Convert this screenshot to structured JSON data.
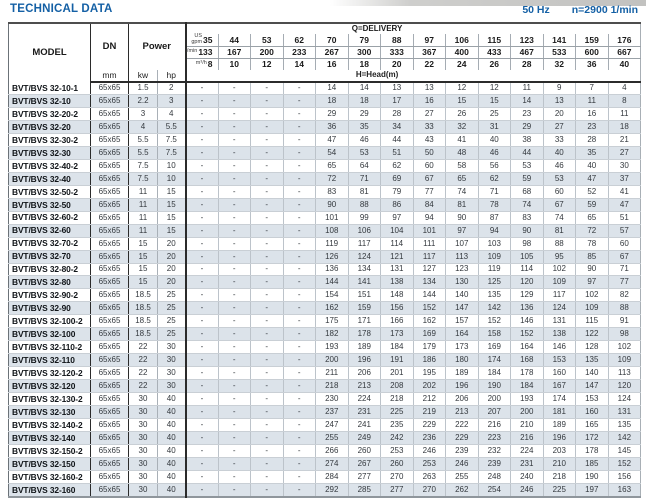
{
  "page": {
    "title": "TECHNICAL DATA",
    "frequency": "50 Hz",
    "speed": "n=2900 1/min"
  },
  "colors": {
    "accent_blue": "#1460a5",
    "row_shade": "#dce3ea"
  },
  "table": {
    "headers": {
      "model": "MODEL",
      "dn": "DN",
      "dn_unit": "mm",
      "power": "Power",
      "power_units": [
        "kw",
        "hp"
      ],
      "delivery": "Q=DELIVERY",
      "head": "H=Head(m)",
      "unit_rows": [
        {
          "label_lines": [
            "US",
            "gpm"
          ],
          "values": [
            "35",
            "44",
            "53",
            "62",
            "70",
            "79",
            "88",
            "97",
            "106",
            "115",
            "123",
            "141",
            "159",
            "176"
          ]
        },
        {
          "label_lines": [
            "l/min"
          ],
          "values": [
            "133",
            "167",
            "200",
            "233",
            "267",
            "300",
            "333",
            "367",
            "400",
            "433",
            "467",
            "533",
            "600",
            "667"
          ]
        },
        {
          "label_lines": [
            "m³/h"
          ],
          "values": [
            "8",
            "10",
            "12",
            "14",
            "16",
            "18",
            "20",
            "22",
            "24",
            "26",
            "28",
            "32",
            "36",
            "40"
          ]
        }
      ]
    },
    "rows": [
      {
        "model": "BVT/BVS 32-10-1",
        "dn": "65x65",
        "kw": "1.5",
        "hp": "2",
        "head": [
          "-",
          "-",
          "-",
          "-",
          "14",
          "14",
          "13",
          "13",
          "12",
          "12",
          "11",
          "9",
          "7",
          "4"
        ]
      },
      {
        "model": "BVT/BVS 32-10",
        "dn": "65x65",
        "kw": "2.2",
        "hp": "3",
        "head": [
          "-",
          "-",
          "-",
          "-",
          "18",
          "18",
          "17",
          "16",
          "15",
          "15",
          "14",
          "13",
          "11",
          "8"
        ]
      },
      {
        "model": "BVT/BVS 32-20-2",
        "dn": "65x65",
        "kw": "3",
        "hp": "4",
        "head": [
          "-",
          "-",
          "-",
          "-",
          "29",
          "29",
          "28",
          "27",
          "26",
          "25",
          "23",
          "20",
          "16",
          "11"
        ]
      },
      {
        "model": "BVT/BVS 32-20",
        "dn": "65x65",
        "kw": "4",
        "hp": "5.5",
        "head": [
          "-",
          "-",
          "-",
          "-",
          "36",
          "35",
          "34",
          "33",
          "32",
          "31",
          "29",
          "27",
          "23",
          "18"
        ]
      },
      {
        "model": "BVT/BVS 32-30-2",
        "dn": "65x65",
        "kw": "5.5",
        "hp": "7.5",
        "head": [
          "-",
          "-",
          "-",
          "-",
          "47",
          "46",
          "44",
          "43",
          "41",
          "40",
          "38",
          "33",
          "28",
          "21"
        ]
      },
      {
        "model": "BVT/BVS 32-30",
        "dn": "65x65",
        "kw": "5.5",
        "hp": "7.5",
        "head": [
          "-",
          "-",
          "-",
          "-",
          "54",
          "53",
          "51",
          "50",
          "48",
          "46",
          "44",
          "40",
          "35",
          "27"
        ]
      },
      {
        "model": "BVT/BVS 32-40-2",
        "dn": "65x65",
        "kw": "7.5",
        "hp": "10",
        "head": [
          "-",
          "-",
          "-",
          "-",
          "65",
          "64",
          "62",
          "60",
          "58",
          "56",
          "53",
          "46",
          "40",
          "30"
        ]
      },
      {
        "model": "BVT/BVS 32-40",
        "dn": "65x65",
        "kw": "7.5",
        "hp": "10",
        "head": [
          "-",
          "-",
          "-",
          "-",
          "72",
          "71",
          "69",
          "67",
          "65",
          "62",
          "59",
          "53",
          "47",
          "37"
        ]
      },
      {
        "model": "BVT/BVS 32-50-2",
        "dn": "65x65",
        "kw": "11",
        "hp": "15",
        "head": [
          "-",
          "-",
          "-",
          "-",
          "83",
          "81",
          "79",
          "77",
          "74",
          "71",
          "68",
          "60",
          "52",
          "41"
        ]
      },
      {
        "model": "BVT/BVS 32-50",
        "dn": "65x65",
        "kw": "11",
        "hp": "15",
        "head": [
          "-",
          "-",
          "-",
          "-",
          "90",
          "88",
          "86",
          "84",
          "81",
          "78",
          "74",
          "67",
          "59",
          "47"
        ]
      },
      {
        "model": "BVT/BVS 32-60-2",
        "dn": "65x65",
        "kw": "11",
        "hp": "15",
        "head": [
          "-",
          "-",
          "-",
          "-",
          "101",
          "99",
          "97",
          "94",
          "90",
          "87",
          "83",
          "74",
          "65",
          "51"
        ]
      },
      {
        "model": "BVT/BVS 32-60",
        "dn": "65x65",
        "kw": "11",
        "hp": "15",
        "head": [
          "-",
          "-",
          "-",
          "-",
          "108",
          "106",
          "104",
          "101",
          "97",
          "94",
          "90",
          "81",
          "72",
          "57"
        ]
      },
      {
        "model": "BVT/BVS 32-70-2",
        "dn": "65x65",
        "kw": "15",
        "hp": "20",
        "head": [
          "-",
          "-",
          "-",
          "-",
          "119",
          "117",
          "114",
          "111",
          "107",
          "103",
          "98",
          "88",
          "78",
          "60"
        ]
      },
      {
        "model": "BVT/BVS 32-70",
        "dn": "65x65",
        "kw": "15",
        "hp": "20",
        "head": [
          "-",
          "-",
          "-",
          "-",
          "126",
          "124",
          "121",
          "117",
          "113",
          "109",
          "105",
          "95",
          "85",
          "67"
        ]
      },
      {
        "model": "BVT/BVS 32-80-2",
        "dn": "65x65",
        "kw": "15",
        "hp": "20",
        "head": [
          "-",
          "-",
          "-",
          "-",
          "136",
          "134",
          "131",
          "127",
          "123",
          "119",
          "114",
          "102",
          "90",
          "71"
        ]
      },
      {
        "model": "BVT/BVS 32-80",
        "dn": "65x65",
        "kw": "15",
        "hp": "20",
        "head": [
          "-",
          "-",
          "-",
          "-",
          "144",
          "141",
          "138",
          "134",
          "130",
          "125",
          "120",
          "109",
          "97",
          "77"
        ]
      },
      {
        "model": "BVT/BVS 32-90-2",
        "dn": "65x65",
        "kw": "18.5",
        "hp": "25",
        "head": [
          "-",
          "-",
          "-",
          "-",
          "154",
          "151",
          "148",
          "144",
          "140",
          "135",
          "129",
          "117",
          "102",
          "82"
        ]
      },
      {
        "model": "BVT/BVS 32-90",
        "dn": "65x65",
        "kw": "18.5",
        "hp": "25",
        "head": [
          "-",
          "-",
          "-",
          "-",
          "162",
          "159",
          "156",
          "152",
          "147",
          "142",
          "136",
          "124",
          "109",
          "88"
        ]
      },
      {
        "model": "BVT/BVS 32-100-2",
        "dn": "65x65",
        "kw": "18.5",
        "hp": "25",
        "head": [
          "-",
          "-",
          "-",
          "-",
          "175",
          "171",
          "166",
          "162",
          "157",
          "152",
          "146",
          "131",
          "115",
          "91"
        ]
      },
      {
        "model": "BVT/BVS 32-100",
        "dn": "65x65",
        "kw": "18.5",
        "hp": "25",
        "head": [
          "-",
          "-",
          "-",
          "-",
          "182",
          "178",
          "173",
          "169",
          "164",
          "158",
          "152",
          "138",
          "122",
          "98"
        ]
      },
      {
        "model": "BVT/BVS 32-110-2",
        "dn": "65x65",
        "kw": "22",
        "hp": "30",
        "head": [
          "-",
          "-",
          "-",
          "-",
          "193",
          "189",
          "184",
          "179",
          "173",
          "169",
          "164",
          "146",
          "128",
          "102"
        ]
      },
      {
        "model": "BVT/BVS 32-110",
        "dn": "65x65",
        "kw": "22",
        "hp": "30",
        "head": [
          "-",
          "-",
          "-",
          "-",
          "200",
          "196",
          "191",
          "186",
          "180",
          "174",
          "168",
          "153",
          "135",
          "109"
        ]
      },
      {
        "model": "BVT/BVS 32-120-2",
        "dn": "65x65",
        "kw": "22",
        "hp": "30",
        "head": [
          "-",
          "-",
          "-",
          "-",
          "211",
          "206",
          "201",
          "195",
          "189",
          "184",
          "178",
          "160",
          "140",
          "113"
        ]
      },
      {
        "model": "BVT/BVS 32-120",
        "dn": "65x65",
        "kw": "22",
        "hp": "30",
        "head": [
          "-",
          "-",
          "-",
          "-",
          "218",
          "213",
          "208",
          "202",
          "196",
          "190",
          "184",
          "167",
          "147",
          "120"
        ]
      },
      {
        "model": "BVT/BVS 32-130-2",
        "dn": "65x65",
        "kw": "30",
        "hp": "40",
        "head": [
          "-",
          "-",
          "-",
          "-",
          "230",
          "224",
          "218",
          "212",
          "206",
          "200",
          "193",
          "174",
          "153",
          "124"
        ]
      },
      {
        "model": "BVT/BVS 32-130",
        "dn": "65x65",
        "kw": "30",
        "hp": "40",
        "head": [
          "-",
          "-",
          "-",
          "-",
          "237",
          "231",
          "225",
          "219",
          "213",
          "207",
          "200",
          "181",
          "160",
          "131"
        ]
      },
      {
        "model": "BVT/BVS 32-140-2",
        "dn": "65x65",
        "kw": "30",
        "hp": "40",
        "head": [
          "-",
          "-",
          "-",
          "-",
          "247",
          "241",
          "235",
          "229",
          "222",
          "216",
          "210",
          "189",
          "165",
          "135"
        ]
      },
      {
        "model": "BVT/BVS 32-140",
        "dn": "65x65",
        "kw": "30",
        "hp": "40",
        "head": [
          "-",
          "-",
          "-",
          "-",
          "255",
          "249",
          "242",
          "236",
          "229",
          "223",
          "216",
          "196",
          "172",
          "142"
        ]
      },
      {
        "model": "BVT/BVS 32-150-2",
        "dn": "65x65",
        "kw": "30",
        "hp": "40",
        "head": [
          "-",
          "-",
          "-",
          "-",
          "266",
          "260",
          "253",
          "246",
          "239",
          "232",
          "224",
          "203",
          "178",
          "145"
        ]
      },
      {
        "model": "BVT/BVS 32-150",
        "dn": "65x65",
        "kw": "30",
        "hp": "40",
        "head": [
          "-",
          "-",
          "-",
          "-",
          "274",
          "267",
          "260",
          "253",
          "246",
          "239",
          "231",
          "210",
          "185",
          "152"
        ]
      },
      {
        "model": "BVT/BVS 32-160-2",
        "dn": "65x65",
        "kw": "30",
        "hp": "40",
        "head": [
          "-",
          "-",
          "-",
          "-",
          "284",
          "277",
          "270",
          "263",
          "255",
          "248",
          "240",
          "218",
          "190",
          "156"
        ]
      },
      {
        "model": "BVT/BVS 32-160",
        "dn": "65x65",
        "kw": "30",
        "hp": "40",
        "head": [
          "-",
          "-",
          "-",
          "-",
          "292",
          "285",
          "277",
          "270",
          "262",
          "254",
          "246",
          "225",
          "197",
          "163"
        ]
      }
    ]
  }
}
